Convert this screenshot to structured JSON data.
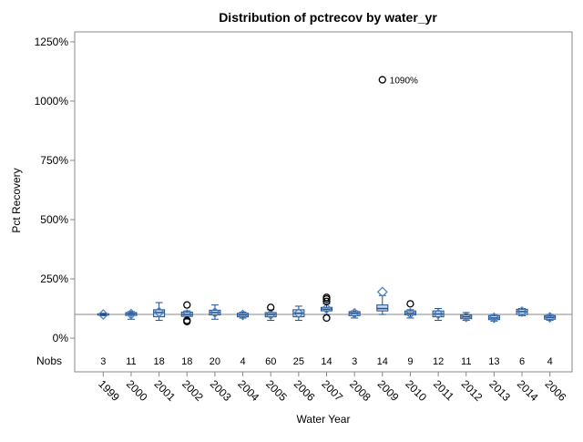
{
  "chart_data": {
    "type": "box",
    "title": "Distribution of pctrecov by water_yr",
    "x_label": "Water Year",
    "y_label": "Pct Recovery",
    "categories": [
      "1999",
      "2000",
      "2001",
      "2002",
      "2003",
      "2004",
      "2005",
      "2006",
      "2007",
      "2008",
      "2009",
      "2010",
      "2011",
      "2012",
      "2013",
      "2014",
      "2006"
    ],
    "min": [
      95,
      80,
      75,
      80,
      80,
      85,
      75,
      75,
      100,
      85,
      100,
      85,
      75,
      75,
      72,
      95,
      75
    ],
    "q1": [
      97,
      96,
      90,
      92,
      98,
      90,
      90,
      90,
      115,
      95,
      115,
      98,
      90,
      82,
      78,
      100,
      80
    ],
    "median": [
      100,
      102,
      108,
      100,
      108,
      98,
      100,
      105,
      122,
      105,
      125,
      105,
      102,
      90,
      85,
      112,
      88
    ],
    "q3": [
      103,
      108,
      120,
      110,
      118,
      105,
      108,
      120,
      130,
      112,
      140,
      115,
      115,
      98,
      95,
      122,
      95
    ],
    "max": [
      105,
      112,
      150,
      115,
      140,
      110,
      120,
      135,
      145,
      115,
      180,
      120,
      125,
      108,
      100,
      125,
      100
    ],
    "mean": [
      100,
      102,
      110,
      100,
      108,
      98,
      100,
      105,
      125,
      105,
      195,
      105,
      102,
      90,
      86,
      112,
      88
    ],
    "outliers": [
      [],
      [],
      [],
      [
        140,
        75,
        70
      ],
      [],
      [],
      [
        130
      ],
      [],
      [
        155,
        165,
        172,
        85
      ],
      [],
      [
        1090
      ],
      [
        145
      ],
      [],
      [],
      [],
      [],
      []
    ],
    "outlier_value_labels": [
      [],
      [],
      [],
      [],
      [],
      [],
      [],
      [],
      [],
      [],
      [
        "1090%"
      ],
      [],
      [],
      [],
      [],
      [],
      []
    ],
    "nobs_label": "Nobs",
    "nobs": [
      3,
      11,
      18,
      18,
      20,
      4,
      60,
      25,
      14,
      3,
      14,
      9,
      12,
      11,
      13,
      6,
      4
    ],
    "reference_line": 100,
    "box_color": "#c9d9f0",
    "line_color": "#1f4e8c",
    "mean_color": "#4f81bd",
    "ylim": [
      -142,
      1292
    ],
    "yticks": [
      {
        "value": 0,
        "label": "0%"
      },
      {
        "value": 250,
        "label": "250%"
      },
      {
        "value": 500,
        "label": "500%"
      },
      {
        "value": 750,
        "label": "750%"
      },
      {
        "value": 1000,
        "label": "1000%"
      },
      {
        "value": 1250,
        "label": "1250%"
      }
    ]
  }
}
